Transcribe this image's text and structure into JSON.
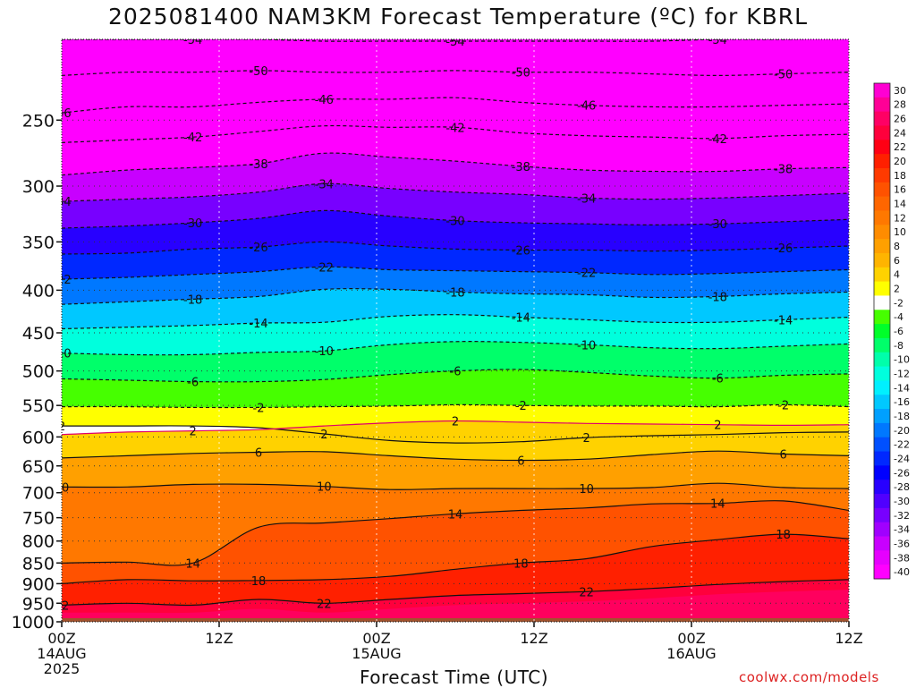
{
  "title": "2025081400 NAM3KM Forecast Temperature (ºC) for KBRL",
  "credit": "coolwx.com/models",
  "chart_data": {
    "type": "heatmap",
    "title": "2025081400 NAM3KM Forecast Temperature (ºC) for KBRL",
    "xlabel": "Forecast Time (UTC)",
    "ylabel": "",
    "x_ticks": [
      {
        "hour": 0,
        "lines": [
          "00Z",
          "14AUG",
          "2025"
        ]
      },
      {
        "hour": 12,
        "lines": [
          "12Z"
        ]
      },
      {
        "hour": 24,
        "lines": [
          "00Z",
          "15AUG"
        ]
      },
      {
        "hour": 36,
        "lines": [
          "12Z"
        ]
      },
      {
        "hour": 48,
        "lines": [
          "00Z",
          "16AUG"
        ]
      },
      {
        "hour": 60,
        "lines": [
          "12Z"
        ]
      }
    ],
    "xlim": [
      0,
      60
    ],
    "y_scale": "log",
    "ylim": [
      1000,
      200
    ],
    "y_ticks": [
      250,
      300,
      350,
      400,
      450,
      500,
      550,
      600,
      650,
      700,
      750,
      800,
      850,
      900,
      950,
      1000
    ],
    "ground_pressure": 990,
    "colorbar": {
      "labels": [
        30,
        28,
        26,
        24,
        22,
        20,
        18,
        16,
        14,
        12,
        10,
        8,
        6,
        4,
        2,
        -2,
        -4,
        -6,
        -8,
        -10,
        -12,
        -14,
        -16,
        -18,
        -20,
        -22,
        -24,
        -26,
        -28,
        -30,
        -32,
        -34,
        -36,
        -38,
        -40
      ],
      "colors": [
        "#ff00d2",
        "#ff0096",
        "#ff0064",
        "#ff003c",
        "#ff0014",
        "#ff2000",
        "#ff3a00",
        "#ff5200",
        "#ff6600",
        "#ff7800",
        "#ff8c00",
        "#ffa000",
        "#ffb400",
        "#ffd200",
        "#ffff00",
        "#ffffff",
        "#46ff00",
        "#00ff2a",
        "#00ff6a",
        "#00ffaa",
        "#00ffdd",
        "#00f0ff",
        "#00c8ff",
        "#00a0ff",
        "#0078ff",
        "#0050ff",
        "#0028ff",
        "#0000ff",
        "#2800ff",
        "#5000ff",
        "#7800ff",
        "#a000ff",
        "#c800ff",
        "#e600ff",
        "#ff00ff"
      ]
    },
    "isotherms": [
      {
        "label": -54,
        "pressures": [
          200,
          200,
          200,
          200,
          201,
          201,
          201,
          201,
          201,
          201,
          200,
          200,
          199
        ]
      },
      {
        "label": -50,
        "pressures": [
          221,
          219,
          219,
          218,
          219,
          219,
          218,
          219,
          219,
          220,
          221,
          220,
          219
        ]
      },
      {
        "label": -46,
        "pressures": [
          245,
          241,
          241,
          238,
          236,
          236,
          235,
          238,
          240,
          241,
          241,
          240,
          239
        ]
      },
      {
        "label": -42,
        "pressures": [
          266,
          264,
          262,
          258,
          254,
          255,
          255,
          259,
          261,
          262,
          263,
          261,
          260
        ]
      },
      {
        "label": -38,
        "pressures": [
          291,
          287,
          285,
          282,
          274,
          277,
          280,
          284,
          287,
          288,
          288,
          286,
          285
        ]
      },
      {
        "label": -34,
        "pressures": [
          313,
          311,
          309,
          305,
          298,
          302,
          305,
          307,
          310,
          311,
          310,
          308,
          306
        ]
      },
      {
        "label": -30,
        "pressures": [
          337,
          335,
          332,
          328,
          321,
          326,
          330,
          332,
          333,
          334,
          333,
          331,
          329
        ]
      },
      {
        "label": -26,
        "pressures": [
          362,
          361,
          357,
          355,
          350,
          354,
          357,
          358,
          358,
          359,
          358,
          356,
          354
        ]
      },
      {
        "label": -22,
        "pressures": [
          388,
          386,
          383,
          380,
          375,
          378,
          379,
          380,
          381,
          383,
          382,
          380,
          378
        ]
      },
      {
        "label": -18,
        "pressures": [
          416,
          413,
          410,
          407,
          399,
          399,
          402,
          404,
          405,
          408,
          407,
          404,
          402
        ]
      },
      {
        "label": -14,
        "pressures": [
          445,
          443,
          441,
          438,
          437,
          430,
          428,
          431,
          434,
          437,
          437,
          434,
          431
        ]
      },
      {
        "label": -10,
        "pressures": [
          476,
          478,
          478,
          475,
          473,
          465,
          461,
          462,
          465,
          469,
          470,
          467,
          464
        ]
      },
      {
        "label": -6,
        "pressures": [
          511,
          513,
          515,
          515,
          512,
          505,
          500,
          498,
          502,
          507,
          510,
          506,
          504
        ]
      },
      {
        "label": -2,
        "pressures": [
          552,
          552,
          553,
          553,
          552,
          551,
          549,
          550,
          551,
          551,
          552,
          549,
          552
        ]
      },
      {
        "label": 2,
        "pressures": [
          582,
          582,
          582,
          585,
          595,
          606,
          610,
          608,
          601,
          598,
          596,
          593,
          592
        ]
      },
      {
        "label": 2,
        "pressures": [
          596,
          592,
          590,
          588,
          582,
          577,
          574,
          576,
          578,
          579,
          580,
          581,
          580
        ]
      },
      {
        "label": 6,
        "pressures": [
          636,
          632,
          628,
          626,
          625,
          632,
          638,
          640,
          638,
          630,
          624,
          629,
          632
        ]
      },
      {
        "label": 10,
        "pressures": [
          689,
          689,
          684,
          684,
          688,
          694,
          692,
          692,
          692,
          690,
          682,
          690,
          692
        ]
      },
      {
        "label": 14,
        "pressures": [
          850,
          848,
          850,
          770,
          761,
          752,
          742,
          735,
          730,
          722,
          721,
          716,
          735
        ]
      },
      {
        "label": 18,
        "pressures": [
          900,
          890,
          893,
          892,
          890,
          882,
          865,
          850,
          840,
          812,
          797,
          785,
          795
        ]
      },
      {
        "label": 22,
        "pressures": [
          955,
          950,
          955,
          940,
          950,
          940,
          930,
          925,
          920,
          912,
          902,
          895,
          890
        ]
      }
    ]
  }
}
